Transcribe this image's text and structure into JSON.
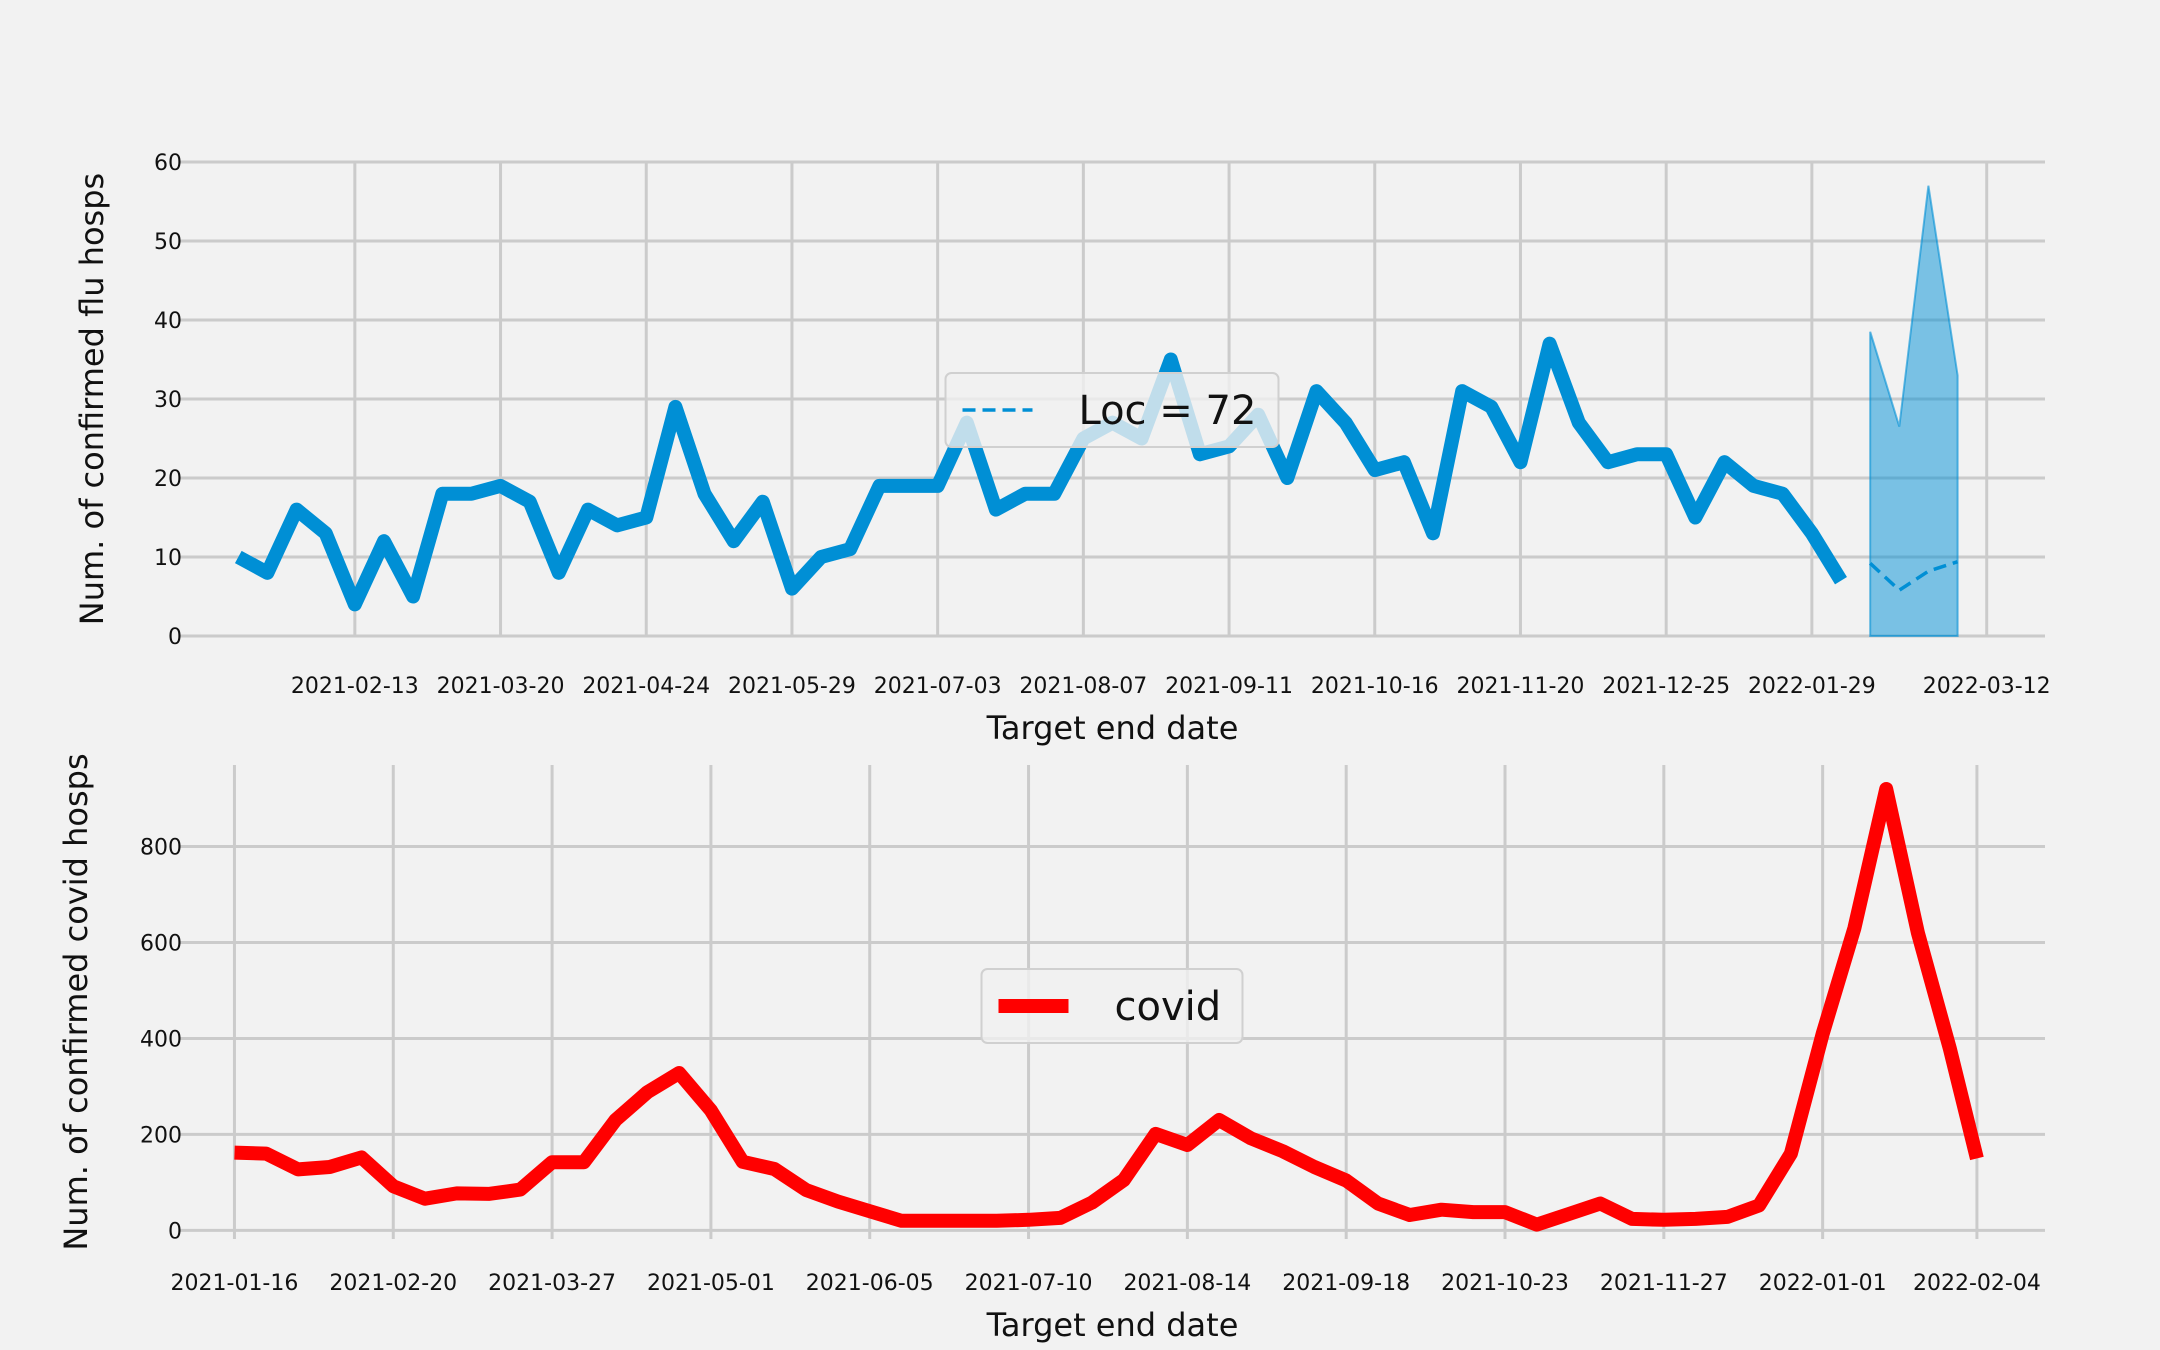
{
  "chart_data": [
    {
      "type": "line",
      "xlabel": "Target end date",
      "ylabel": "Num. of confirmed flu hosps",
      "ylim": [
        0,
        60
      ],
      "yticks": [
        0,
        10,
        20,
        30,
        40,
        50,
        60
      ],
      "xlim": [
        "2021-01-02",
        "2022-03-26"
      ],
      "xticks": [
        "2021-02-13",
        "2021-03-20",
        "2021-04-24",
        "2021-05-29",
        "2021-07-03",
        "2021-08-07",
        "2021-09-11",
        "2021-10-16",
        "2021-11-20",
        "2021-12-25",
        "2022-01-29",
        "2022-03-12"
      ],
      "grid": true,
      "legend": {
        "position": "center",
        "entries": [
          {
            "label": "Loc = 72",
            "style": "dashed",
            "color": "#008fd5"
          }
        ]
      },
      "series": [
        {
          "color": "#008fd5",
          "style": "solid",
          "x": [
            "2021-01-16",
            "2021-01-23",
            "2021-01-30",
            "2021-02-06",
            "2021-02-13",
            "2021-02-20",
            "2021-02-27",
            "2021-03-06",
            "2021-03-13",
            "2021-03-20",
            "2021-03-27",
            "2021-04-03",
            "2021-04-10",
            "2021-04-17",
            "2021-04-24",
            "2021-05-01",
            "2021-05-08",
            "2021-05-15",
            "2021-05-22",
            "2021-05-29",
            "2021-06-05",
            "2021-06-12",
            "2021-06-19",
            "2021-06-26",
            "2021-07-03",
            "2021-07-10",
            "2021-07-17",
            "2021-07-24",
            "2021-07-31",
            "2021-08-07",
            "2021-08-14",
            "2021-08-21",
            "2021-08-28",
            "2021-09-04",
            "2021-09-11",
            "2021-09-18",
            "2021-09-25",
            "2021-10-02",
            "2021-10-09",
            "2021-10-16",
            "2021-10-23",
            "2021-10-30",
            "2021-11-06",
            "2021-11-13",
            "2021-11-20",
            "2021-11-27",
            "2021-12-04",
            "2021-12-11",
            "2021-12-18",
            "2021-12-25",
            "2022-01-01",
            "2022-01-08",
            "2022-01-15",
            "2022-01-22",
            "2022-01-29",
            "2022-02-05"
          ],
          "values": [
            10,
            8,
            16,
            13,
            4,
            12,
            5,
            18,
            18,
            19,
            17,
            8,
            16,
            14,
            15,
            29,
            18,
            12,
            17,
            6,
            10,
            11,
            19,
            19,
            19,
            27,
            16,
            18,
            18,
            25,
            27,
            25,
            35,
            23,
            24,
            28,
            20,
            31,
            27,
            21,
            22,
            13,
            31,
            29,
            22,
            37,
            27,
            22,
            23,
            23,
            15,
            22,
            19,
            18,
            13,
            7
          ]
        },
        {
          "label": "Loc = 72",
          "color": "#008fd5",
          "style": "dashed",
          "x": [
            "2022-02-12",
            "2022-02-19",
            "2022-02-26",
            "2022-03-05"
          ],
          "values": [
            9.2,
            5.8,
            8.2,
            9.4
          ],
          "band_lower": [
            0,
            0,
            0,
            0
          ],
          "band_upper": [
            38.5,
            26.5,
            57,
            33
          ]
        }
      ]
    },
    {
      "type": "line",
      "xlabel": "Target end date",
      "ylabel": "Num. of confirmed covid hosps",
      "ylim": [
        -18,
        970
      ],
      "yticks": [
        0,
        200,
        400,
        600,
        800
      ],
      "xlim": [
        "2021-01-04",
        "2022-02-19"
      ],
      "xticks": [
        "2021-01-16",
        "2021-02-20",
        "2021-03-27",
        "2021-05-01",
        "2021-06-05",
        "2021-07-10",
        "2021-08-14",
        "2021-09-18",
        "2021-10-23",
        "2021-11-27",
        "2022-01-01",
        "2022-02-04"
      ],
      "grid": true,
      "legend": {
        "position": "center",
        "entries": [
          {
            "label": "covid",
            "style": "solid",
            "color": "#ff0000"
          }
        ]
      },
      "series": [
        {
          "label": "covid",
          "color": "#ff0000",
          "style": "solid",
          "x": [
            "2021-01-16",
            "2021-01-23",
            "2021-01-30",
            "2021-02-06",
            "2021-02-13",
            "2021-02-20",
            "2021-02-27",
            "2021-03-06",
            "2021-03-13",
            "2021-03-20",
            "2021-03-27",
            "2021-04-03",
            "2021-04-10",
            "2021-04-17",
            "2021-04-24",
            "2021-05-01",
            "2021-05-08",
            "2021-05-15",
            "2021-05-22",
            "2021-05-29",
            "2021-06-05",
            "2021-06-12",
            "2021-06-19",
            "2021-06-26",
            "2021-07-03",
            "2021-07-10",
            "2021-07-17",
            "2021-07-24",
            "2021-07-31",
            "2021-08-07",
            "2021-08-14",
            "2021-08-21",
            "2021-08-28",
            "2021-09-04",
            "2021-09-11",
            "2021-09-18",
            "2021-09-25",
            "2021-10-02",
            "2021-10-09",
            "2021-10-16",
            "2021-10-23",
            "2021-10-30",
            "2021-11-06",
            "2021-11-13",
            "2021-11-20",
            "2021-11-27",
            "2021-12-04",
            "2021-12-11",
            "2021-12-18",
            "2021-12-25",
            "2022-01-01",
            "2022-01-08",
            "2022-01-15",
            "2022-01-22",
            "2022-01-29",
            "2022-02-04"
          ],
          "values": [
            162,
            160,
            127,
            132,
            152,
            92,
            66,
            77,
            76,
            85,
            142,
            142,
            230,
            288,
            328,
            250,
            143,
            128,
            84,
            60,
            40,
            20,
            20,
            20,
            20,
            22,
            26,
            58,
            105,
            201,
            178,
            230,
            192,
            165,
            132,
            104,
            56,
            32,
            43,
            38,
            38,
            12,
            34,
            56,
            24,
            22,
            24,
            28,
            52,
            160,
            410,
            630,
            920,
            620,
            380,
            150
          ]
        }
      ]
    }
  ]
}
